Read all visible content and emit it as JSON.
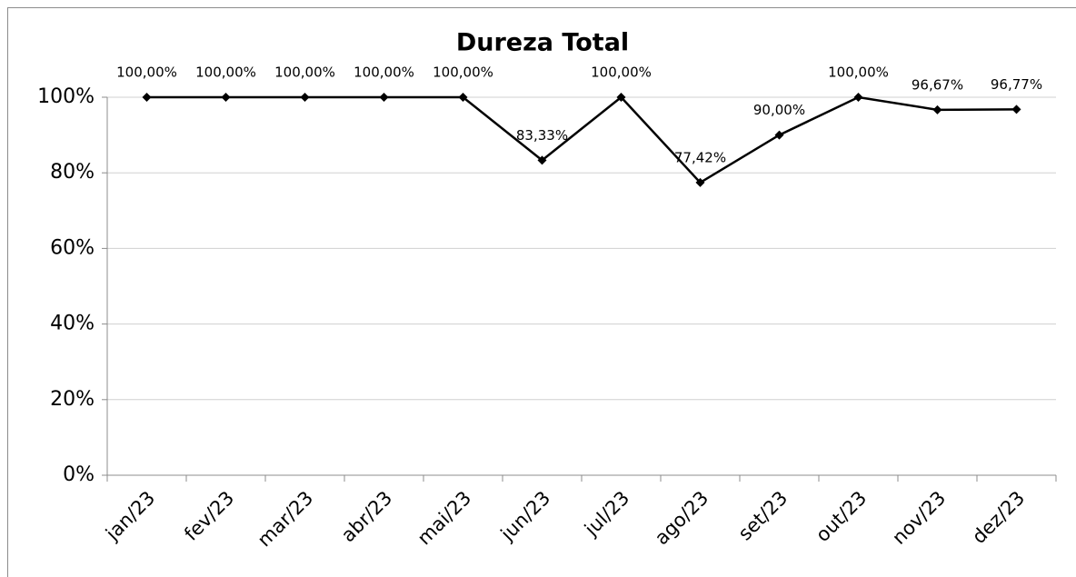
{
  "chart_data": {
    "type": "line",
    "title": "Dureza Total",
    "categories": [
      "jan/23",
      "fev/23",
      "mar/23",
      "abr/23",
      "mai/23",
      "jun/23",
      "jul/23",
      "ago/23",
      "set/23",
      "out/23",
      "nov/23",
      "dez/23"
    ],
    "values": [
      100,
      100,
      100,
      100,
      100,
      83.33,
      100,
      77.42,
      90,
      100,
      96.67,
      96.77
    ],
    "value_labels": [
      "100,00%",
      "100,00%",
      "100,00%",
      "100,00%",
      "100,00%",
      "83,33%",
      "100,00%",
      "77,42%",
      "90,00%",
      "100,00%",
      "96,67%",
      "96,77%"
    ],
    "color": "#000000",
    "ylim": [
      0,
      100
    ],
    "yticks": [
      {
        "value": 0,
        "label": "0%"
      },
      {
        "value": 20,
        "label": "20%"
      },
      {
        "value": 40,
        "label": "40%"
      },
      {
        "value": 60,
        "label": "60%"
      },
      {
        "value": 80,
        "label": "80%"
      },
      {
        "value": 100,
        "label": "100%"
      }
    ],
    "grid": true
  }
}
